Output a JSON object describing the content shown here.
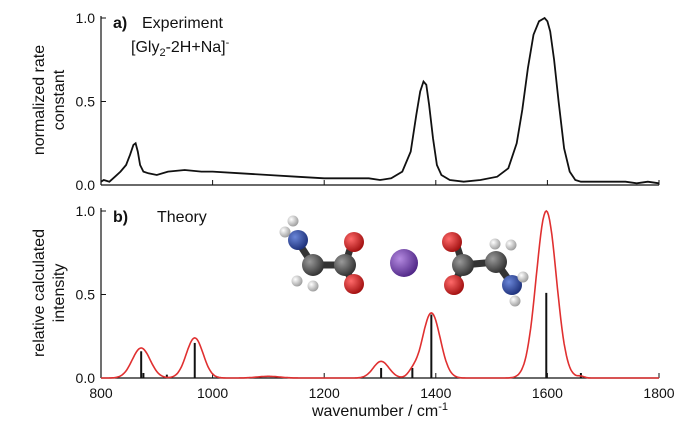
{
  "chart_data": [
    {
      "type": "line",
      "panel": "a)",
      "title": "Experiment",
      "species": {
        "base": "[Gly",
        "sub": "2",
        "mid": "-2H+Na]",
        "sup": "-"
      },
      "ylabel_lines": [
        "normalized rate",
        "constant"
      ],
      "xlim": [
        800,
        1800
      ],
      "ylim": [
        0,
        1.0
      ],
      "yticks": [
        "0.0",
        "0.5",
        "1.0"
      ],
      "grid": false,
      "series": [
        {
          "color": "#111111",
          "x": [
            800,
            805,
            815,
            825,
            835,
            845,
            852,
            858,
            862,
            866,
            870,
            876,
            885,
            900,
            920,
            950,
            980,
            1000,
            1050,
            1100,
            1150,
            1200,
            1250,
            1280,
            1300,
            1320,
            1340,
            1355,
            1365,
            1372,
            1378,
            1383,
            1388,
            1395,
            1402,
            1410,
            1425,
            1450,
            1480,
            1510,
            1530,
            1545,
            1555,
            1565,
            1575,
            1585,
            1595,
            1600,
            1605,
            1612,
            1620,
            1630,
            1640,
            1650,
            1660,
            1680,
            1700,
            1720,
            1740,
            1760,
            1780,
            1800
          ],
          "y": [
            0.02,
            0.03,
            0.02,
            0.05,
            0.08,
            0.12,
            0.18,
            0.24,
            0.25,
            0.2,
            0.12,
            0.08,
            0.07,
            0.06,
            0.08,
            0.09,
            0.08,
            0.08,
            0.07,
            0.06,
            0.05,
            0.04,
            0.04,
            0.04,
            0.03,
            0.04,
            0.08,
            0.2,
            0.42,
            0.56,
            0.62,
            0.6,
            0.48,
            0.28,
            0.12,
            0.06,
            0.03,
            0.02,
            0.03,
            0.05,
            0.1,
            0.25,
            0.45,
            0.7,
            0.9,
            0.98,
            1.0,
            0.98,
            0.92,
            0.75,
            0.5,
            0.22,
            0.08,
            0.03,
            0.02,
            0.02,
            0.02,
            0.02,
            0.02,
            0.01,
            0.02,
            0.01
          ]
        }
      ]
    },
    {
      "type": "line",
      "panel": "b)",
      "title": "Theory",
      "ylabel_lines": [
        "relative calculated",
        "intensity"
      ],
      "xlabel": "wavenumber / cm",
      "xlabel_sup": "-1",
      "xlim": [
        800,
        1800
      ],
      "ylim": [
        0,
        1.0
      ],
      "xticks": [
        "800",
        "1000",
        "1200",
        "1400",
        "1600",
        "1800"
      ],
      "yticks": [
        "0.0",
        "0.5",
        "1.0"
      ],
      "grid": false,
      "curve": {
        "color": "#e03030",
        "peaks": [
          {
            "center": 872,
            "height": 0.18,
            "width": 16
          },
          {
            "center": 968,
            "height": 0.24,
            "width": 15
          },
          {
            "center": 1100,
            "height": 0.01,
            "width": 20
          },
          {
            "center": 1302,
            "height": 0.1,
            "width": 14
          },
          {
            "center": 1358,
            "height": 0.03,
            "width": 8
          },
          {
            "center": 1392,
            "height": 0.39,
            "width": 16
          },
          {
            "center": 1598,
            "height": 1.0,
            "width": 18
          },
          {
            "center": 1660,
            "height": 0.01,
            "width": 6
          }
        ]
      },
      "sticks": {
        "color": "#111111",
        "x": [
          872,
          876,
          918,
          968,
          1302,
          1358,
          1392,
          1598,
          1660
        ],
        "y": [
          0.16,
          0.03,
          0.02,
          0.21,
          0.06,
          0.06,
          0.38,
          0.51,
          0.03
        ]
      }
    }
  ],
  "molecule": {
    "carbon": "#555555",
    "oxygen": "#d42020",
    "nitrogen": "#2b4aa0",
    "hydrogen": "#eeeeee",
    "sodium": "#7a48b0"
  }
}
